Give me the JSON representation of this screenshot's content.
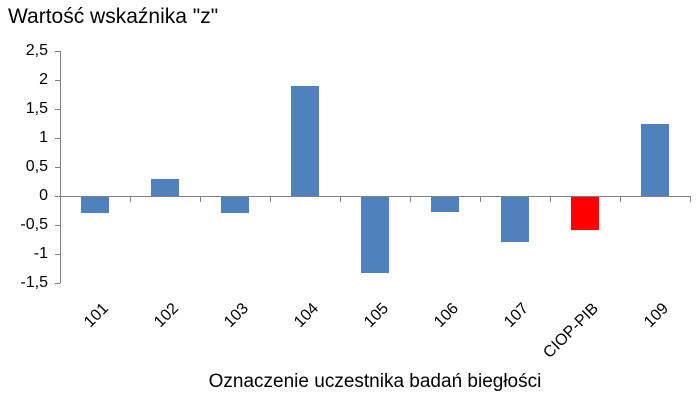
{
  "chart_data": {
    "type": "bar",
    "title": "Wartość wskaźnika \"z\"",
    "xlabel": "Oznaczenie uczestnika badań biegłości",
    "ylabel": "",
    "categories": [
      "101",
      "102",
      "103",
      "104",
      "105",
      "106",
      "107",
      "CIOP-PIB",
      "109"
    ],
    "values": [
      -0.3,
      0.3,
      -0.3,
      1.9,
      -1.33,
      -0.27,
      -0.79,
      -0.59,
      1.25
    ],
    "bar_colors": [
      "#4F81BD",
      "#4F81BD",
      "#4F81BD",
      "#4F81BD",
      "#4F81BD",
      "#4F81BD",
      "#4F81BD",
      "#FF0000",
      "#4F81BD"
    ],
    "default_bar_color": "#4F81BD",
    "highlight": {
      "category": "CIOP-PIB",
      "color": "#FF0000"
    },
    "ylim": [
      -1.5,
      2.5
    ],
    "yticks": [
      2.5,
      2,
      1.5,
      1,
      0.5,
      0,
      -0.5,
      -1,
      -1.5
    ],
    "ytick_labels": [
      "2,5",
      "2",
      "1,5",
      "1",
      "0,5",
      "0",
      "-0,5",
      "-1",
      "-1,5"
    ],
    "grid": false,
    "legend": false,
    "axis_color": "#808080",
    "text_color": "#000000",
    "background": "#FFFFFF"
  }
}
